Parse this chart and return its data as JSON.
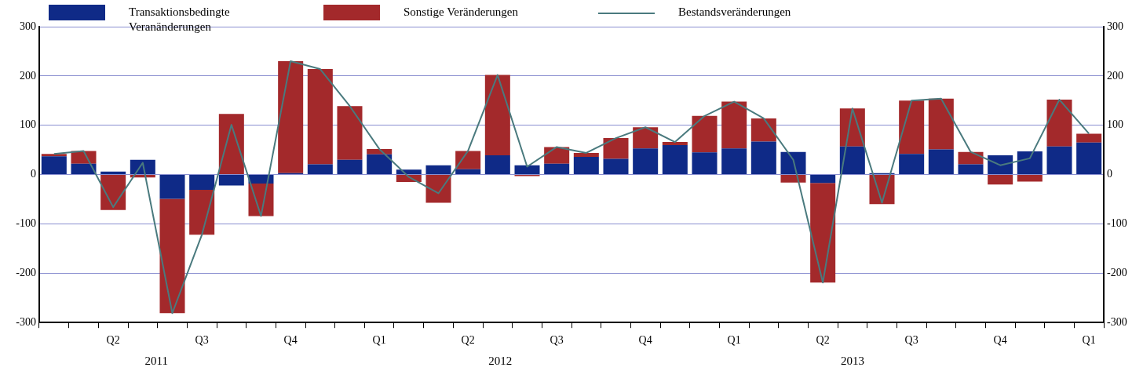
{
  "chart_data": {
    "type": "bar",
    "stacked": true,
    "legend": "top",
    "grid": "y",
    "categories": [
      null,
      null,
      "Q2",
      null,
      null,
      "Q3",
      null,
      null,
      "Q4",
      null,
      null,
      "Q1",
      null,
      null,
      "Q2",
      null,
      null,
      "Q3",
      null,
      null,
      "Q4",
      null,
      null,
      "Q1",
      null,
      null,
      "Q2",
      null,
      null,
      "Q3",
      null,
      null,
      "Q4",
      null,
      null,
      "Q1"
    ],
    "ylim": [
      -300,
      300
    ],
    "yticks": [
      -300,
      -200,
      -100,
      0,
      100,
      200,
      300
    ],
    "y2lim": [
      -300,
      300
    ],
    "y2ticks": [
      -300,
      -200,
      -100,
      0,
      100,
      200,
      300
    ],
    "annotations": [
      "2011",
      "2012",
      "2013"
    ],
    "series": [
      {
        "name": "Transaktionsbedingte Veranänderungen",
        "color": "#0f2a87",
        "values": [
          37,
          22,
          6,
          30,
          -49,
          -31,
          -22,
          -18,
          3,
          21,
          30,
          41,
          10,
          19,
          11,
          39,
          19,
          22,
          36,
          32,
          53,
          60,
          45,
          53,
          67,
          46,
          -17,
          57,
          3,
          42,
          51,
          21,
          39,
          47,
          57,
          65
        ]
      },
      {
        "name": "Sonstige Veränderungen",
        "color": "#a3292b",
        "values": [
          5,
          26,
          -72,
          -6,
          -232,
          -91,
          123,
          -66,
          227,
          193,
          109,
          11,
          -15,
          -57,
          37,
          163,
          -3,
          34,
          8,
          42,
          43,
          6,
          74,
          95,
          47,
          -16,
          -202,
          77,
          -60,
          108,
          103,
          25,
          -20,
          -14,
          95,
          18
        ]
      },
      {
        "name": "Bestandsveränderungen",
        "type": "line",
        "color": "#4a7a7e",
        "marker": "none",
        "line_style": "solid",
        "values": [
          42,
          48,
          -66,
          24,
          -281,
          -122,
          101,
          -84,
          230,
          214,
          139,
          52,
          -5,
          -38,
          48,
          202,
          16,
          56,
          44,
          74,
          96,
          66,
          119,
          148,
          114,
          30,
          -219,
          134,
          -57,
          150,
          154,
          46,
          19,
          33,
          152,
          83
        ]
      }
    ]
  }
}
